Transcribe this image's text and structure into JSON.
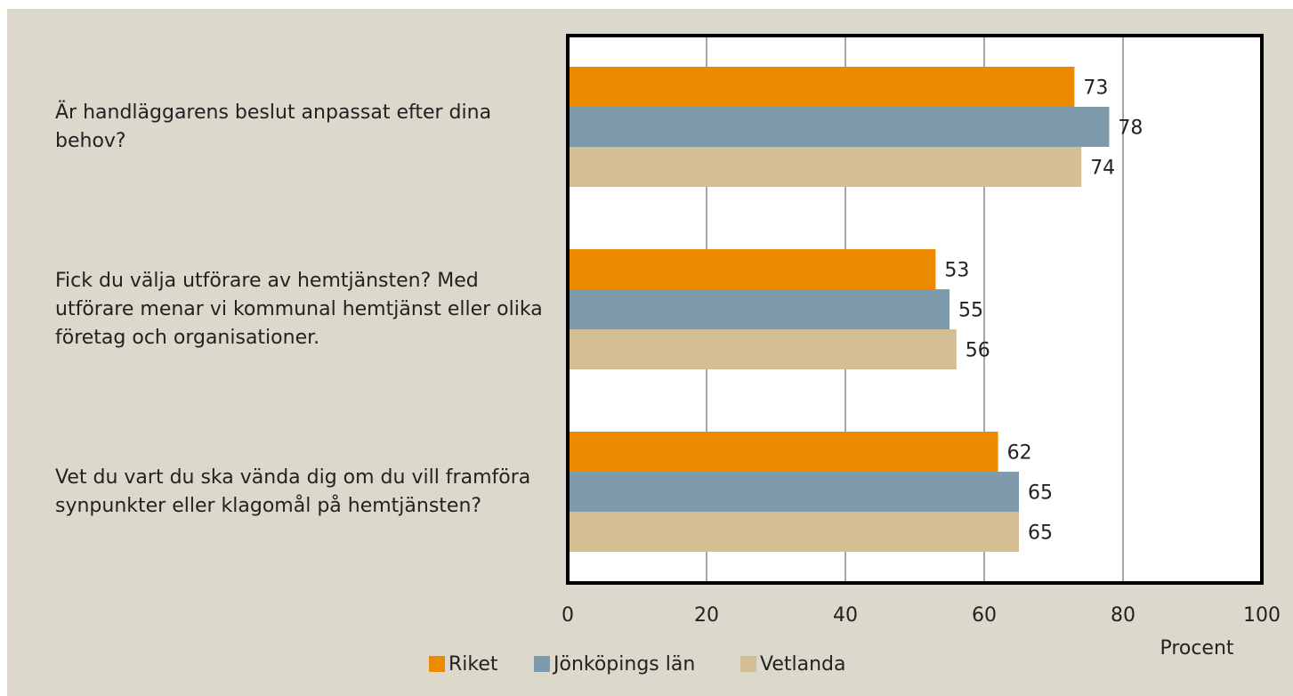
{
  "chart_data": {
    "type": "bar",
    "orientation": "horizontal",
    "categories": [
      "Är handläggarens beslut anpassat efter dina behov?",
      "Fick du välja utförare av hemtjänsten? Med utförare menar vi kommunal hemtjänst eller olika företag och organisationer.",
      "Vet du vart du ska vända dig om du vill framföra synpunkter eller klagomål på hemtjänsten?"
    ],
    "series": [
      {
        "name": "Riket",
        "color": "#ee8a00",
        "values": [
          73,
          53,
          62
        ]
      },
      {
        "name": "Jönköpings län",
        "color": "#7f9aab",
        "values": [
          78,
          55,
          65
        ]
      },
      {
        "name": "Vetlanda",
        "color": "#d4bf95",
        "values": [
          74,
          56,
          65
        ]
      }
    ],
    "xlabel": "Procent",
    "xlim": [
      0,
      100
    ],
    "xticks": [
      0,
      20,
      40,
      60,
      80,
      100
    ],
    "grid": true,
    "legend": "bottom"
  }
}
